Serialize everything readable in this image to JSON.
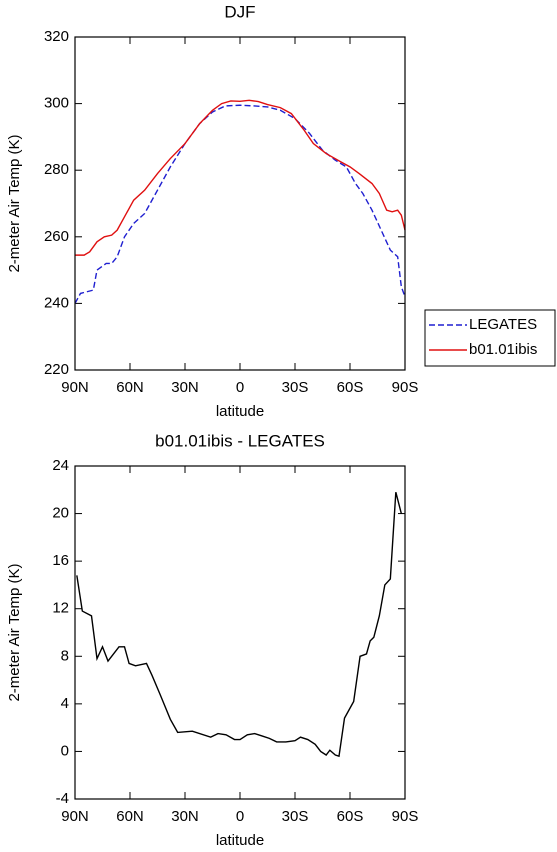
{
  "chart_data": [
    {
      "type": "line",
      "title": "DJF",
      "x_label": "latitude",
      "y_label": "2-meter Air Temp (K)",
      "xlim": [
        90,
        -90
      ],
      "xticks": [
        {
          "value": 90,
          "label": "90N"
        },
        {
          "value": 60,
          "label": "60N"
        },
        {
          "value": 30,
          "label": "30N"
        },
        0,
        {
          "value": -30,
          "label": "30S"
        },
        {
          "value": -60,
          "label": "60S"
        },
        {
          "value": -90,
          "label": "90S"
        }
      ],
      "ylim": [
        220,
        320
      ],
      "yticks": [
        220,
        240,
        260,
        280,
        300,
        320
      ],
      "legend_position": "right",
      "series": [
        {
          "name": "LEGATES",
          "color": "#1f1fd0",
          "style": "dashed",
          "x": [
            90,
            87,
            80,
            78,
            73,
            70,
            67,
            63,
            58,
            52,
            45,
            38,
            30,
            22,
            15,
            8,
            0,
            -8,
            -15,
            -22,
            -30,
            -38,
            -45,
            -52,
            -58,
            -63,
            -67,
            -72,
            -77,
            -82,
            -86,
            -88,
            -90
          ],
          "values": [
            240,
            243,
            244,
            250,
            252,
            252,
            254,
            260,
            264,
            267,
            274,
            281,
            288,
            294,
            297.5,
            299.3,
            299.5,
            299.3,
            299,
            298,
            295.5,
            291,
            286,
            283,
            281,
            276,
            273,
            268,
            262,
            256,
            254,
            245,
            242
          ]
        },
        {
          "name": "b01.01ibis",
          "color": "#e01010",
          "style": "solid",
          "x": [
            90,
            85,
            82,
            78,
            74,
            70,
            67,
            63,
            58,
            52,
            45,
            38,
            30,
            22,
            15,
            10,
            5,
            0,
            -5,
            -10,
            -15,
            -22,
            -28,
            -35,
            -40,
            -47,
            -55,
            -60,
            -65,
            -72,
            -76,
            -80,
            -83,
            -86,
            -88,
            -90
          ],
          "values": [
            254.5,
            254.5,
            255.5,
            258.5,
            260,
            260.5,
            262,
            266,
            271,
            274,
            279,
            283.5,
            288,
            294,
            298,
            300,
            300.8,
            300.7,
            301,
            300.6,
            299.7,
            298.8,
            297,
            292,
            288,
            285,
            282.5,
            281,
            279,
            276,
            273,
            268,
            267.5,
            268,
            266.5,
            262
          ]
        }
      ]
    },
    {
      "type": "line",
      "title": "b01.01ibis - LEGATES",
      "x_label": "latitude",
      "y_label": "2-meter Air Temp (K)",
      "xlim": [
        90,
        -90
      ],
      "xticks": [
        {
          "value": 90,
          "label": "90N"
        },
        {
          "value": 60,
          "label": "60N"
        },
        {
          "value": 30,
          "label": "30N"
        },
        0,
        {
          "value": -30,
          "label": "30S"
        },
        {
          "value": -60,
          "label": "60S"
        },
        {
          "value": -90,
          "label": "90S"
        }
      ],
      "ylim": [
        -4,
        24
      ],
      "yticks": [
        -4,
        0,
        4,
        8,
        12,
        16,
        20,
        24
      ],
      "series": [
        {
          "color": "#000000",
          "style": "solid",
          "x": [
            89,
            86,
            81,
            78,
            75,
            72,
            66,
            63,
            60.5,
            57,
            51,
            48,
            43.6,
            38,
            34,
            26,
            16,
            12,
            7.6,
            3,
            0,
            -4,
            -8,
            -12,
            -16,
            -20,
            -25,
            -30,
            -33,
            -37,
            -41,
            -44,
            -47,
            -49,
            -52,
            -54,
            -57,
            -62,
            -65.5,
            -69,
            -71,
            -73,
            -76,
            -79,
            -82,
            -85,
            -88
          ],
          "values": [
            14.8,
            11.8,
            11.4,
            7.8,
            8.8,
            7.6,
            8.8,
            8.8,
            7.4,
            7.2,
            7.4,
            6.4,
            4.8,
            2.7,
            1.6,
            1.7,
            1.2,
            1.5,
            1.4,
            1.0,
            1.0,
            1.4,
            1.5,
            1.3,
            1.1,
            0.8,
            0.8,
            0.9,
            1.2,
            1.0,
            0.6,
            0,
            -0.3,
            0.1,
            -0.3,
            -0.4,
            2.8,
            4.2,
            8.0,
            8.2,
            9.3,
            9.6,
            11.4,
            14.0,
            14.5,
            21.8,
            20.0
          ]
        }
      ]
    }
  ]
}
